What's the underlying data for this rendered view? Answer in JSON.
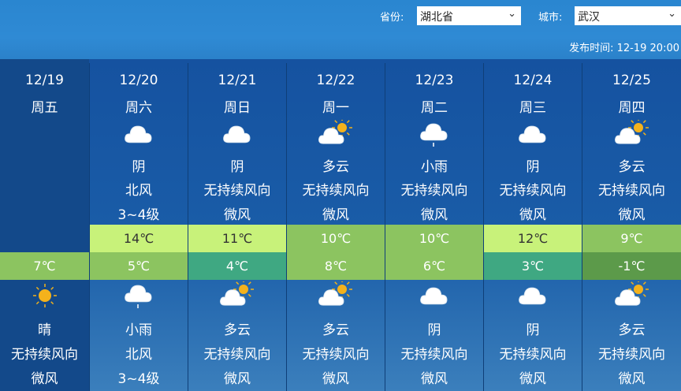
{
  "header": {
    "province_label": "省份:",
    "province_value": "湖北省",
    "city_label": "城市:",
    "city_value": "武汉",
    "publish_label": "发布时间:",
    "publish_time": "12-19 20:00"
  },
  "colors": {
    "high_light": "#c8f27a",
    "mid_green": "#8cc460",
    "teal": "#3fa882",
    "dark_green": "#5c9a4a"
  },
  "days": [
    {
      "date": "12/19",
      "weekday": "周五",
      "day": null,
      "high": null,
      "low": "7℃",
      "low_color": "mid_green",
      "night": {
        "icon": "sunny-icon",
        "weather": "晴",
        "wind_dir": "无持续风向",
        "wind_level": "微风"
      }
    },
    {
      "date": "12/20",
      "weekday": "周六",
      "day": {
        "icon": "overcast-icon",
        "weather": "阴",
        "wind_dir": "北风",
        "wind_level": "3~4级"
      },
      "high": "14℃",
      "high_color": "high_light",
      "low": "5℃",
      "low_color": "mid_green",
      "night": {
        "icon": "light-rain-icon",
        "weather": "小雨",
        "wind_dir": "北风",
        "wind_level": "3~4级"
      }
    },
    {
      "date": "12/21",
      "weekday": "周日",
      "day": {
        "icon": "overcast-icon",
        "weather": "阴",
        "wind_dir": "无持续风向",
        "wind_level": "微风"
      },
      "high": "11℃",
      "high_color": "high_light",
      "low": "4℃",
      "low_color": "teal",
      "night": {
        "icon": "partly-cloudy-icon",
        "weather": "多云",
        "wind_dir": "无持续风向",
        "wind_level": "微风"
      }
    },
    {
      "date": "12/22",
      "weekday": "周一",
      "day": {
        "icon": "partly-cloudy-icon",
        "weather": "多云",
        "wind_dir": "无持续风向",
        "wind_level": "微风"
      },
      "high": "10℃",
      "high_color": "mid_green",
      "low": "8℃",
      "low_color": "mid_green",
      "night": {
        "icon": "partly-cloudy-icon",
        "weather": "多云",
        "wind_dir": "无持续风向",
        "wind_level": "微风"
      }
    },
    {
      "date": "12/23",
      "weekday": "周二",
      "day": {
        "icon": "light-rain-icon",
        "weather": "小雨",
        "wind_dir": "无持续风向",
        "wind_level": "微风"
      },
      "high": "10℃",
      "high_color": "mid_green",
      "low": "6℃",
      "low_color": "mid_green",
      "night": {
        "icon": "overcast-icon",
        "weather": "阴",
        "wind_dir": "无持续风向",
        "wind_level": "微风"
      }
    },
    {
      "date": "12/24",
      "weekday": "周三",
      "day": {
        "icon": "overcast-icon",
        "weather": "阴",
        "wind_dir": "无持续风向",
        "wind_level": "微风"
      },
      "high": "12℃",
      "high_color": "high_light",
      "low": "3℃",
      "low_color": "teal",
      "night": {
        "icon": "overcast-icon",
        "weather": "阴",
        "wind_dir": "无持续风向",
        "wind_level": "微风"
      }
    },
    {
      "date": "12/25",
      "weekday": "周四",
      "day": {
        "icon": "partly-cloudy-icon",
        "weather": "多云",
        "wind_dir": "无持续风向",
        "wind_level": "微风"
      },
      "high": "9℃",
      "high_color": "mid_green",
      "low": "-1℃",
      "low_color": "dark_green",
      "night": {
        "icon": "partly-cloudy-icon",
        "weather": "多云",
        "wind_dir": "无持续风向",
        "wind_level": "微风"
      }
    }
  ]
}
